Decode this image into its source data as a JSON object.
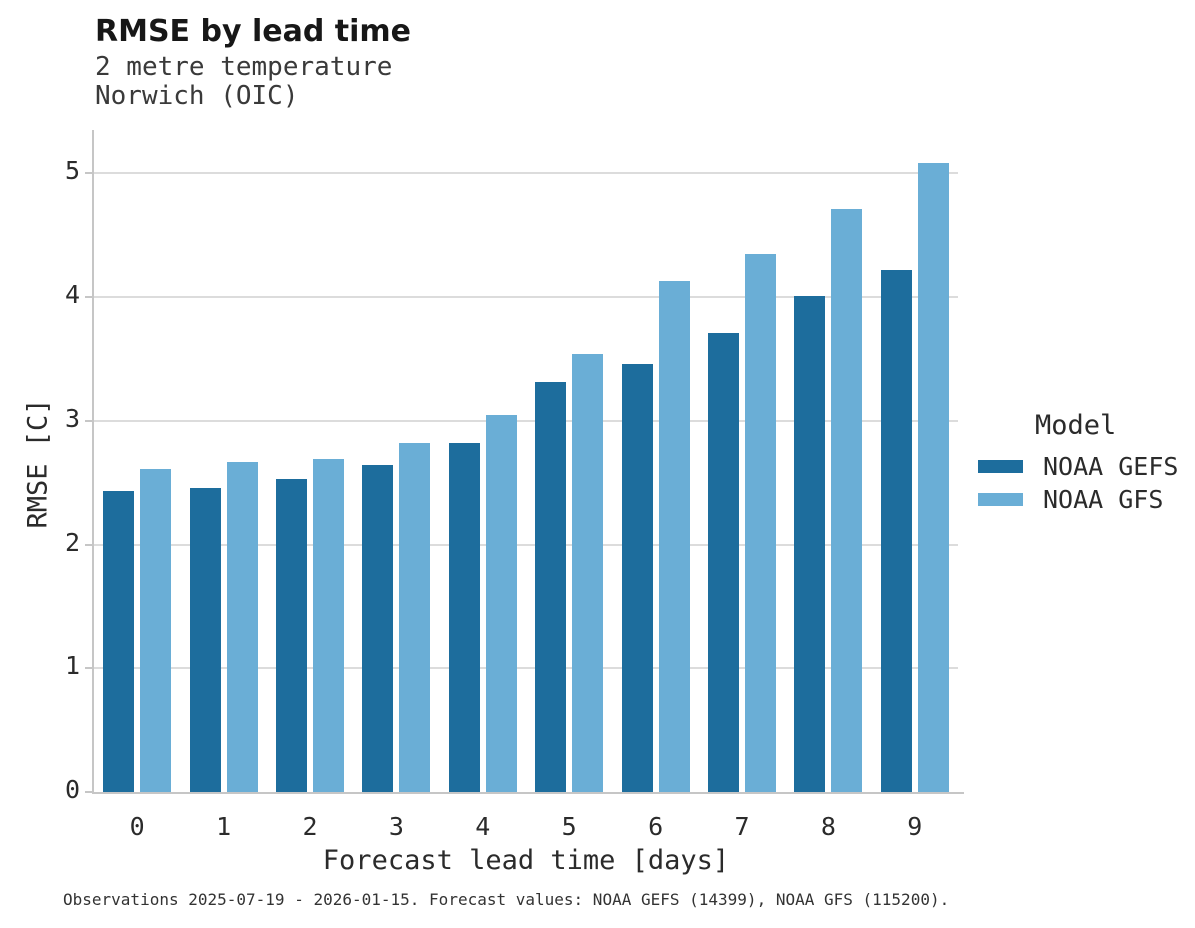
{
  "title": "RMSE by lead time",
  "subtitle_line1": "2 metre temperature",
  "subtitle_line2": "Norwich (OIC)",
  "caption": "Observations 2025-07-19 - 2026-01-15. Forecast values: NOAA GEFS (14399), NOAA GFS (115200).",
  "legend": {
    "title": "Model"
  },
  "colors": {
    "gefs": "#1d6d9d",
    "gfs": "#6aaed6",
    "grid": "#dcdcdc",
    "spine": "#c6c6c6"
  },
  "chart_data": {
    "type": "bar",
    "title": "RMSE by lead time",
    "subtitle": [
      "2 metre temperature",
      "Norwich (OIC)"
    ],
    "categories": [
      "0",
      "1",
      "2",
      "3",
      "4",
      "5",
      "6",
      "7",
      "8",
      "9"
    ],
    "series": [
      {
        "name": "NOAA GEFS",
        "color": "#1d6d9d",
        "values": [
          2.43,
          2.46,
          2.53,
          2.64,
          2.82,
          3.31,
          3.46,
          3.71,
          4.01,
          4.22
        ]
      },
      {
        "name": "NOAA GFS",
        "color": "#6aaed6",
        "values": [
          2.61,
          2.67,
          2.69,
          2.82,
          3.05,
          3.54,
          4.13,
          4.35,
          4.71,
          5.08
        ]
      }
    ],
    "xlabel": "Forecast lead time [days]",
    "ylabel": "RMSE [C]",
    "ylim": [
      0,
      5.35
    ],
    "yticks": [
      0,
      1,
      2,
      3,
      4,
      5
    ],
    "grid": "horizontal",
    "legend_position": "right",
    "legend_title": "Model"
  }
}
